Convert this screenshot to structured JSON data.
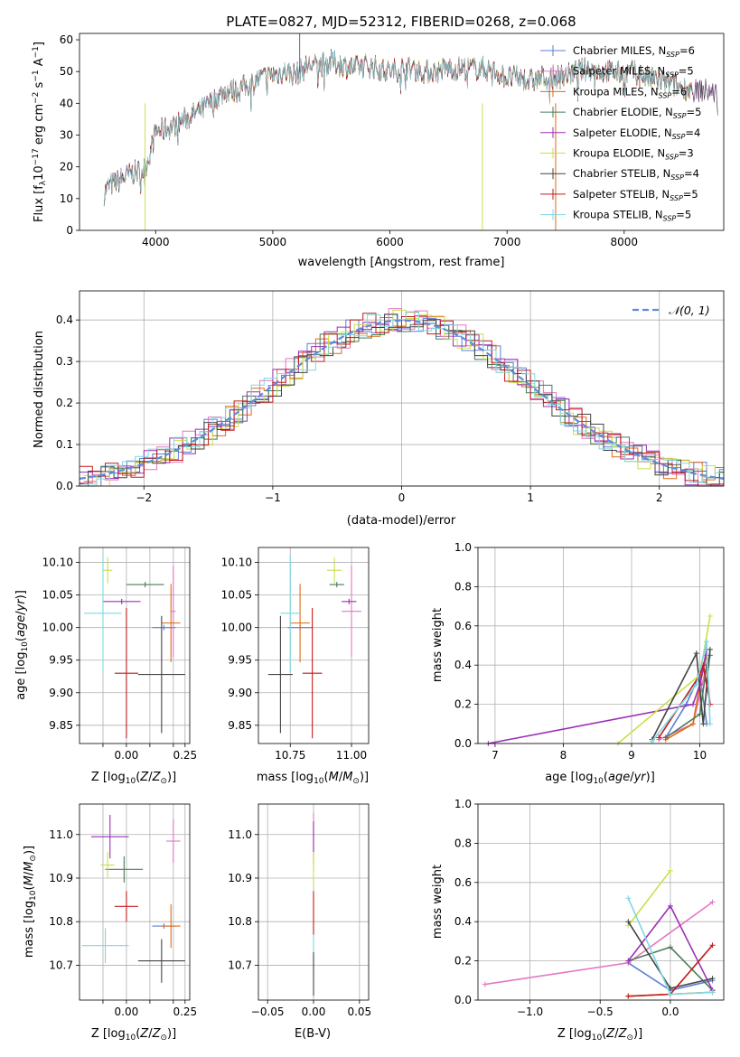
{
  "chart_data": [
    {
      "id": "spectrum",
      "type": "line",
      "title": "PLATE=0827, MJD=52312, FIBERID=0268, z=0.068",
      "xlabel": "wavelength [Angstrom, rest frame]",
      "ylabel": "Flux [f",
      "xlim": [
        3350,
        8850
      ],
      "ylim": [
        0,
        62
      ],
      "xticks": [
        4000,
        5000,
        6000,
        7000,
        8000
      ],
      "yticks": [
        0,
        10,
        20,
        30,
        40,
        50,
        60
      ],
      "grid": false,
      "legend_position": "top-right",
      "series": [
        {
          "name": "Chabrier MILES, N",
          "nssp": "6",
          "color": "#5b7fd6"
        },
        {
          "name": "Salpeter MILES, N",
          "nssp": "5",
          "color": "#e377c2"
        },
        {
          "name": "Kroupa MILES, N",
          "nssp": "6",
          "color": "#e06a14"
        },
        {
          "name": "Chabrier ELODIE, N",
          "nssp": "5",
          "color": "#4a7a57"
        },
        {
          "name": "Salpeter ELODIE, N",
          "nssp": "4",
          "color": "#9b2fb5"
        },
        {
          "name": "Kroupa ELODIE, N",
          "nssp": "3",
          "color": "#c8e04a"
        },
        {
          "name": "Chabrier STELIB, N",
          "nssp": "4",
          "color": "#444444"
        },
        {
          "name": "Salpeter STELIB, N",
          "nssp": "5",
          "color": "#c41a1a"
        },
        {
          "name": "Kroupa STELIB, N",
          "nssp": "5",
          "color": "#7fd8e0"
        }
      ],
      "continuum": {
        "x": [
          3550,
          3600,
          3700,
          3800,
          3900,
          3950,
          4000,
          4100,
          4200,
          4300,
          4400,
          4500,
          4600,
          4700,
          4800,
          4900,
          5000,
          5100,
          5200,
          5300,
          5400,
          5500,
          5600,
          5700,
          5800,
          5900,
          6000,
          6100,
          6200,
          6300,
          6400,
          6500,
          6600,
          6700,
          6800,
          6900,
          7000,
          7100,
          7200,
          7300,
          7400,
          7500,
          7600,
          7700,
          7800,
          7900,
          8000,
          8100,
          8200,
          8300,
          8400,
          8500,
          8600,
          8700,
          8800
        ],
        "y": [
          11,
          14,
          16,
          18,
          19,
          24,
          31,
          32,
          34,
          36,
          38,
          41,
          44,
          44,
          46,
          48,
          49,
          50,
          49,
          52,
          52,
          53,
          52,
          51,
          52,
          51,
          50,
          51,
          51,
          50,
          50,
          51,
          51,
          51,
          51,
          50,
          48,
          48,
          47,
          48,
          48,
          49,
          50,
          51,
          50,
          50,
          49,
          50,
          48,
          47,
          46,
          45,
          44,
          44,
          43
        ]
      }
    },
    {
      "id": "residuals",
      "type": "line",
      "xlabel": "(data-model)/error",
      "ylabel": "Normed distribution",
      "xlim": [
        -2.5,
        2.5
      ],
      "ylim": [
        0,
        0.47
      ],
      "xticks": [
        -2,
        -1,
        0,
        1,
        2
      ],
      "yticks": [
        0.0,
        0.1,
        0.2,
        0.3,
        0.4
      ],
      "grid": true,
      "legend_position": "top-right",
      "legend_label": "N(0,1)",
      "gaussian": {
        "mean": 0,
        "sigma": 1,
        "color": "#5b8ddc"
      }
    },
    {
      "id": "age_vs_Z",
      "type": "scatter",
      "xlabel": "Z [log10(Z/Z⊙)]",
      "ylabel": "age [log10(age/yr)]",
      "xlim": [
        -0.2,
        0.27
      ],
      "ylim": [
        9.822,
        10.123
      ],
      "xticks": [
        -0.1,
        0.0,
        0.1,
        0.2,
        0.25
      ],
      "xtick_labels": [
        "",
        "0.00",
        "",
        "",
        "0.25"
      ],
      "yticks": [
        9.85,
        9.9,
        9.95,
        10.0,
        10.05,
        10.1
      ],
      "grid": true,
      "points": [
        {
          "series": 0,
          "x": 0.16,
          "y": 10.0,
          "xerr": 0.05,
          "yerr": 0.0
        },
        {
          "series": 1,
          "x": 0.2,
          "y": 10.025,
          "xerr": 0.01,
          "yerr": 0.07
        },
        {
          "series": 2,
          "x": 0.19,
          "y": 10.007,
          "xerr": 0.04,
          "yerr": 0.06
        },
        {
          "series": 3,
          "x": 0.08,
          "y": 10.066,
          "xerr": 0.08,
          "yerr": 0.0
        },
        {
          "series": 4,
          "x": -0.02,
          "y": 10.04,
          "xerr": 0.08,
          "yerr": 0.0
        },
        {
          "series": 5,
          "x": -0.08,
          "y": 10.088,
          "xerr": 0.02,
          "yerr": 0.02
        },
        {
          "series": 6,
          "x": 0.15,
          "y": 9.928,
          "xerr": 0.1,
          "yerr": 0.09
        },
        {
          "series": 7,
          "x": 0.0,
          "y": 9.93,
          "xerr": 0.05,
          "yerr": 0.1
        },
        {
          "series": 8,
          "x": -0.1,
          "y": 10.022,
          "xerr": 0.08,
          "yerr": 0.09
        }
      ]
    },
    {
      "id": "age_vs_mass",
      "type": "scatter",
      "xlabel": "mass [log10(M/M⊙)]",
      "ylabel": "",
      "xlim": [
        10.62,
        11.07
      ],
      "ylim": [
        9.822,
        10.123
      ],
      "xticks": [
        10.75,
        11.0
      ],
      "xtick_labels": [
        "10.75",
        "11.00"
      ],
      "yticks": [
        9.85,
        9.9,
        9.95,
        10.0,
        10.05,
        10.1
      ],
      "grid": true,
      "points": [
        {
          "series": 0,
          "x": 10.79,
          "y": 10.0,
          "xerr": 0.05,
          "yerr": 0.0
        },
        {
          "series": 1,
          "x": 11.0,
          "y": 10.025,
          "xerr": 0.04,
          "yerr": 0.07
        },
        {
          "series": 2,
          "x": 10.79,
          "y": 10.007,
          "xerr": 0.04,
          "yerr": 0.06
        },
        {
          "series": 3,
          "x": 10.94,
          "y": 10.066,
          "xerr": 0.03,
          "yerr": 0.0
        },
        {
          "series": 4,
          "x": 10.99,
          "y": 10.04,
          "xerr": 0.03,
          "yerr": 0.0
        },
        {
          "series": 5,
          "x": 10.93,
          "y": 10.088,
          "xerr": 0.03,
          "yerr": 0.02
        },
        {
          "series": 6,
          "x": 10.71,
          "y": 9.928,
          "xerr": 0.05,
          "yerr": 0.09
        },
        {
          "series": 7,
          "x": 10.84,
          "y": 9.93,
          "xerr": 0.04,
          "yerr": 0.1
        },
        {
          "series": 8,
          "x": 10.75,
          "y": 10.022,
          "xerr": 0.04,
          "yerr": 0.09
        }
      ]
    },
    {
      "id": "weight_vs_age",
      "type": "line",
      "xlabel": "age (log10(age/yr))",
      "ylabel": "mass weight",
      "xlim": [
        6.75,
        10.35
      ],
      "ylim": [
        0,
        1.0
      ],
      "xticks": [
        7,
        8,
        9,
        10
      ],
      "yticks": [
        0.0,
        0.2,
        0.4,
        0.6,
        0.8,
        1.0
      ],
      "grid": true,
      "series": [
        {
          "series": 0,
          "x": [
            9.5,
            9.8,
            10.0,
            10.1
          ],
          "y": [
            0.03,
            0.2,
            0.35,
            0.1
          ]
        },
        {
          "series": 1,
          "x": [
            9.4,
            9.9,
            10.1,
            10.15
          ],
          "y": [
            0.02,
            0.1,
            0.4,
            0.2
          ]
        },
        {
          "series": 2,
          "x": [
            9.5,
            9.9,
            10.0,
            10.1
          ],
          "y": [
            0.02,
            0.1,
            0.3,
            0.45
          ]
        },
        {
          "series": 3,
          "x": [
            9.5,
            10.0,
            10.1,
            10.15
          ],
          "y": [
            0.03,
            0.15,
            0.4,
            0.45
          ]
        },
        {
          "series": 4,
          "x": [
            6.9,
            9.9,
            10.0,
            10.1
          ],
          "y": [
            0.0,
            0.2,
            0.3,
            0.48
          ]
        },
        {
          "series": 5,
          "x": [
            8.8,
            10.0,
            10.15
          ],
          "y": [
            0.0,
            0.35,
            0.65
          ]
        },
        {
          "series": 6,
          "x": [
            9.3,
            9.95,
            10.05,
            10.15
          ],
          "y": [
            0.02,
            0.46,
            0.1,
            0.48
          ]
        },
        {
          "series": 7,
          "x": [
            9.4,
            10.0,
            10.05,
            10.15
          ],
          "y": [
            0.03,
            0.35,
            0.4,
            0.2
          ]
        },
        {
          "series": 8,
          "x": [
            9.3,
            9.95,
            10.1,
            10.15
          ],
          "y": [
            0.01,
            0.3,
            0.52,
            0.1
          ]
        }
      ]
    },
    {
      "id": "mass_vs_Z",
      "type": "scatter",
      "xlabel": "Z [log10(Z/Z⊙)]",
      "ylabel": "mass [log10(M/M⊙)]",
      "xlim": [
        -0.2,
        0.27
      ],
      "ylim": [
        10.62,
        11.07
      ],
      "xticks": [
        -0.1,
        0.0,
        0.1,
        0.2,
        0.25
      ],
      "xtick_labels": [
        "",
        "0.00",
        "",
        "",
        "0.25"
      ],
      "yticks": [
        10.7,
        10.8,
        10.9,
        11.0
      ],
      "grid": true,
      "points": [
        {
          "series": 0,
          "x": 0.16,
          "y": 10.79,
          "xerr": 0.05,
          "yerr": 0.0
        },
        {
          "series": 1,
          "x": 0.2,
          "y": 10.985,
          "xerr": 0.03,
          "yerr": 0.05
        },
        {
          "series": 2,
          "x": 0.19,
          "y": 10.79,
          "xerr": 0.04,
          "yerr": 0.05
        },
        {
          "series": 3,
          "x": -0.01,
          "y": 10.92,
          "xerr": 0.08,
          "yerr": 0.03
        },
        {
          "series": 4,
          "x": -0.07,
          "y": 10.995,
          "xerr": 0.08,
          "yerr": 0.05
        },
        {
          "series": 5,
          "x": -0.08,
          "y": 10.93,
          "xerr": 0.03,
          "yerr": 0.03
        },
        {
          "series": 6,
          "x": 0.15,
          "y": 10.71,
          "xerr": 0.1,
          "yerr": 0.05
        },
        {
          "series": 7,
          "x": 0.0,
          "y": 10.835,
          "xerr": 0.05,
          "yerr": 0.035
        },
        {
          "series": 8,
          "x": -0.09,
          "y": 10.745,
          "xerr": 0.1,
          "yerr": 0.04
        }
      ]
    },
    {
      "id": "mass_vs_ebv",
      "type": "scatter",
      "xlabel": "E(B-V)",
      "ylabel": "",
      "xlim": [
        -0.06,
        0.06
      ],
      "ylim": [
        10.62,
        11.07
      ],
      "xticks": [
        -0.05,
        0.0,
        0.05
      ],
      "xtick_labels": [
        "−0.05",
        "0.00",
        "0.05"
      ],
      "yticks": [
        10.7,
        10.8,
        10.9,
        11.0
      ],
      "grid": true,
      "points": [
        {
          "series": 1,
          "x": 0.0,
          "y": 11.0,
          "xerr": 0,
          "yerr": 0.05
        },
        {
          "series": 4,
          "x": 0.0,
          "y": 10.98,
          "xerr": 0,
          "yerr": 0.05
        },
        {
          "series": 5,
          "x": 0.0,
          "y": 10.92,
          "xerr": 0,
          "yerr": 0.04
        },
        {
          "series": 7,
          "x": 0.0,
          "y": 10.82,
          "xerr": 0,
          "yerr": 0.05
        },
        {
          "series": 8,
          "x": 0.0,
          "y": 10.73,
          "xerr": 0,
          "yerr": 0.04
        },
        {
          "series": 6,
          "x": 0.0,
          "y": 10.68,
          "xerr": 0,
          "yerr": 0.05
        }
      ]
    },
    {
      "id": "weight_vs_Z",
      "type": "line",
      "xlabel": "Z [log10(Z/Z⊙)]",
      "ylabel": "mass weight",
      "xlim": [
        -1.37,
        0.38
      ],
      "ylim": [
        0,
        1.0
      ],
      "xticks": [
        -1.0,
        -0.5,
        0.0
      ],
      "xtick_labels": [
        "−1.0",
        "−0.5",
        "0.0"
      ],
      "yticks": [
        0.0,
        0.2,
        0.4,
        0.6,
        0.8,
        1.0
      ],
      "grid": true,
      "series": [
        {
          "series": 0,
          "x": [
            -0.3,
            0.0,
            0.3
          ],
          "y": [
            0.19,
            0.05,
            0.1
          ]
        },
        {
          "series": 1,
          "x": [
            -1.32,
            -0.3,
            0.3
          ],
          "y": [
            0.08,
            0.19,
            0.5
          ]
        },
        {
          "series": 2,
          "x": [
            -0.3,
            0.0,
            0.3
          ],
          "y": [
            0.02,
            0.03,
            0.04
          ]
        },
        {
          "series": 3,
          "x": [
            -0.3,
            0.0,
            0.3
          ],
          "y": [
            0.2,
            0.27,
            0.05
          ]
        },
        {
          "series": 4,
          "x": [
            -0.3,
            0.0,
            0.3
          ],
          "y": [
            0.2,
            0.48,
            0.05
          ]
        },
        {
          "series": 5,
          "x": [
            -0.3,
            0.0
          ],
          "y": [
            0.38,
            0.66
          ]
        },
        {
          "series": 6,
          "x": [
            -0.3,
            0.0,
            0.3
          ],
          "y": [
            0.4,
            0.06,
            0.11
          ]
        },
        {
          "series": 7,
          "x": [
            -0.3,
            0.0,
            0.3
          ],
          "y": [
            0.02,
            0.03,
            0.28
          ]
        },
        {
          "series": 8,
          "x": [
            -0.3,
            0.0,
            0.3
          ],
          "y": [
            0.52,
            0.03,
            0.04
          ]
        }
      ]
    }
  ]
}
